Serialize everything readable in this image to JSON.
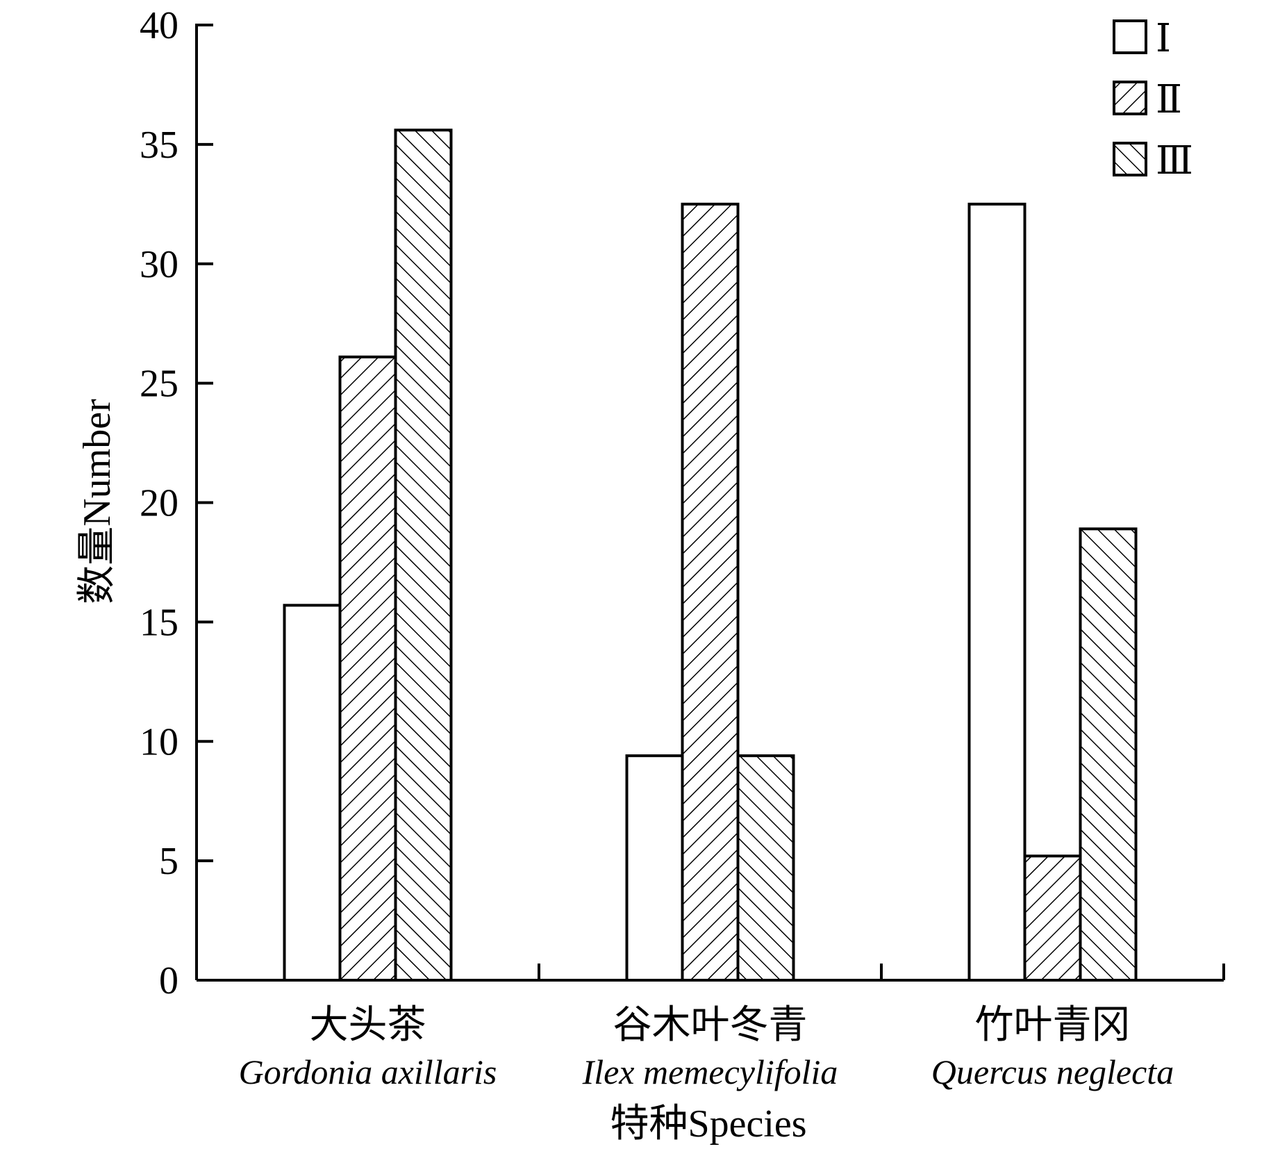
{
  "chart_data": {
    "type": "bar",
    "xlabel": "特种Species",
    "ylabel": "数量Number",
    "ylim": [
      0,
      40
    ],
    "yticks": [
      0,
      5,
      10,
      15,
      20,
      25,
      30,
      35,
      40
    ],
    "grid": false,
    "legend_position": "top-right",
    "categories": [
      {
        "cn": "大头茶",
        "latin": "Gordonia axillaris"
      },
      {
        "cn": "谷木叶冬青",
        "latin": "Ilex memecylifolia"
      },
      {
        "cn": "竹叶青冈",
        "latin": "Quercus neglecta"
      }
    ],
    "series": [
      {
        "name": "Ⅰ",
        "pattern": "none",
        "values": [
          15.7,
          9.4,
          32.5
        ]
      },
      {
        "name": "Ⅱ",
        "pattern": "forward-hatch",
        "values": [
          26.1,
          32.5,
          5.2
        ]
      },
      {
        "name": "Ⅲ",
        "pattern": "back-hatch",
        "values": [
          35.6,
          9.4,
          18.9
        ]
      }
    ],
    "colors": {
      "stroke": "#000000",
      "fill": "#ffffff"
    }
  }
}
